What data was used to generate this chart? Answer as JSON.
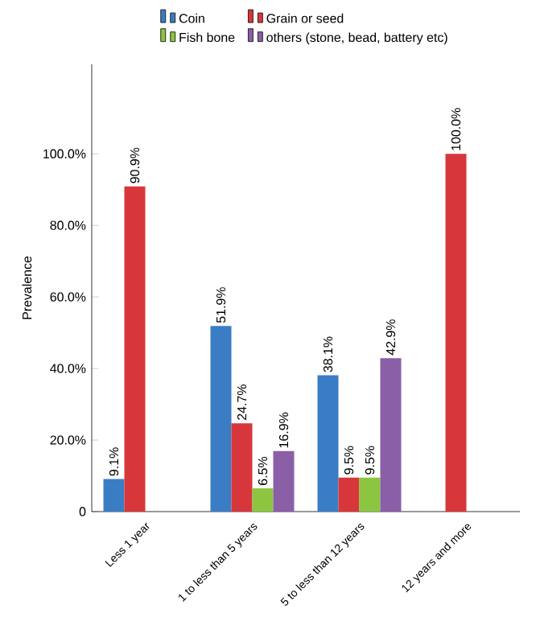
{
  "chart_data": {
    "type": "bar",
    "ylabel": "Prevalence",
    "categories": [
      "Less 1 year",
      "1 to less than 5 years",
      "5 to less than 12 years",
      "12 years and more"
    ],
    "series": [
      {
        "name": "Coin",
        "color": "#3b7dc4",
        "values": [
          9.1,
          51.9,
          38.1,
          null
        ],
        "value_labels": [
          "9.1%",
          "51.9%",
          "38.1%",
          null
        ]
      },
      {
        "name": "Grain or seed",
        "color": "#d7373b",
        "values": [
          90.9,
          24.7,
          9.5,
          100
        ],
        "value_labels": [
          "90.9%",
          "24.7%",
          "9.5%",
          "100.0%"
        ]
      },
      {
        "name": "Fish bone",
        "color": "#8cc540",
        "values": [
          null,
          6.5,
          9.5,
          null
        ],
        "value_labels": [
          null,
          "6.5%",
          "9.5%",
          null
        ]
      },
      {
        "name": "others (stone, bead, battery etc)",
        "color": "#8b5ea8",
        "values": [
          null,
          16.9,
          42.9,
          null
        ],
        "value_labels": [
          null,
          "16.9%",
          "42.9%",
          null
        ]
      }
    ],
    "ylim": [
      0,
      125
    ],
    "yticks": [
      0,
      {
        "value": 20,
        "label": "20.0%"
      },
      {
        "value": 40,
        "label": "40.0%"
      },
      {
        "value": 60,
        "label": "60.0%"
      },
      {
        "value": 80,
        "label": "80.0%"
      },
      {
        "value": 100,
        "label": "100.0%"
      }
    ],
    "legend": "top",
    "grid": false
  }
}
